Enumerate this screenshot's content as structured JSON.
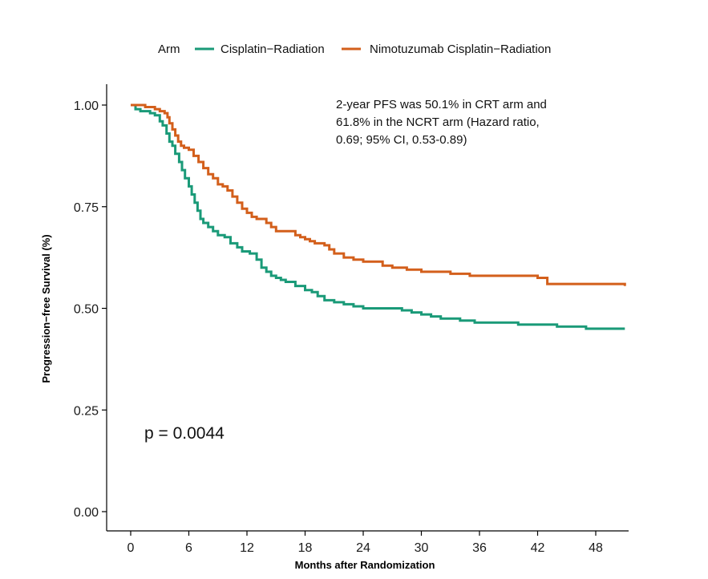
{
  "chart_data": {
    "type": "line",
    "step": true,
    "xlabel": "Months after Randomization",
    "ylabel": "Progression−free Survival (%)",
    "xlim": [
      -2,
      51
    ],
    "ylim": [
      0,
      1
    ],
    "xticks": [
      0,
      6,
      12,
      18,
      24,
      30,
      36,
      42,
      48
    ],
    "xtick_labels": [
      "0",
      "6",
      "12",
      "18",
      "24",
      "30",
      "36",
      "42",
      "48"
    ],
    "yticks": [
      0,
      0.25,
      0.5,
      0.75,
      1.0
    ],
    "ytick_labels": [
      "0.00",
      "0.25",
      "0.50",
      "0.75",
      "1.00"
    ],
    "grid": false,
    "legend": {
      "title": "Arm",
      "position": "top",
      "entries": [
        "Cisplatin−Radiation",
        "Nimotuzumab Cisplatin−Radiation"
      ]
    },
    "annotations": {
      "pfs_note": [
        "2-year PFS was 50.1% in CRT arm and",
        "61.8% in the NCRT arm (Hazard ratio,",
        "0.69; 95% CI, 0.53-0.89)"
      ],
      "p_value": "p = 0.0044"
    },
    "series": [
      {
        "name": "Cisplatin−Radiation",
        "color": "#1a9a78",
        "x": [
          0,
          0.5,
          1,
          2,
          2.5,
          3,
          3.3,
          3.7,
          4,
          4.3,
          4.6,
          5,
          5.3,
          5.6,
          6,
          6.3,
          6.6,
          6.9,
          7.2,
          7.5,
          8,
          8.5,
          9,
          9.7,
          10.3,
          11,
          11.5,
          12.3,
          13,
          13.5,
          14,
          14.5,
          15,
          15.5,
          16,
          17,
          18,
          18.7,
          19.3,
          20,
          21,
          22,
          23,
          24,
          26,
          28,
          29,
          30,
          31,
          32,
          34,
          35.5,
          40,
          42,
          44,
          47,
          51
        ],
        "y": [
          1.0,
          0.99,
          0.985,
          0.98,
          0.975,
          0.96,
          0.95,
          0.93,
          0.91,
          0.9,
          0.88,
          0.86,
          0.84,
          0.82,
          0.8,
          0.78,
          0.76,
          0.74,
          0.72,
          0.71,
          0.7,
          0.69,
          0.68,
          0.675,
          0.66,
          0.65,
          0.64,
          0.635,
          0.62,
          0.6,
          0.59,
          0.58,
          0.575,
          0.57,
          0.565,
          0.555,
          0.545,
          0.54,
          0.53,
          0.52,
          0.515,
          0.51,
          0.505,
          0.5,
          0.5,
          0.495,
          0.49,
          0.485,
          0.48,
          0.475,
          0.47,
          0.465,
          0.46,
          0.46,
          0.455,
          0.45,
          0.45
        ]
      },
      {
        "name": "Nimotuzumab Cisplatin−Radiation",
        "color": "#d35f1b",
        "x": [
          0,
          1.5,
          2.5,
          3,
          3.5,
          3.8,
          4,
          4.3,
          4.6,
          4.9,
          5.2,
          5.5,
          6,
          6.5,
          7,
          7.5,
          8,
          8.5,
          9,
          9.5,
          10,
          10.5,
          11,
          11.5,
          12,
          12.5,
          13,
          14,
          14.5,
          15,
          17,
          17.5,
          18,
          18.5,
          19,
          20,
          20.5,
          21,
          22,
          23,
          24,
          26,
          27,
          28.5,
          30,
          33,
          35,
          42,
          43,
          51
        ],
        "y": [
          1.0,
          0.995,
          0.99,
          0.985,
          0.98,
          0.97,
          0.955,
          0.94,
          0.925,
          0.91,
          0.9,
          0.895,
          0.89,
          0.875,
          0.86,
          0.845,
          0.83,
          0.82,
          0.805,
          0.8,
          0.79,
          0.775,
          0.76,
          0.745,
          0.735,
          0.725,
          0.72,
          0.71,
          0.7,
          0.69,
          0.68,
          0.675,
          0.67,
          0.665,
          0.66,
          0.655,
          0.645,
          0.635,
          0.625,
          0.62,
          0.615,
          0.605,
          0.6,
          0.595,
          0.59,
          0.585,
          0.58,
          0.575,
          0.56,
          0.555
        ]
      }
    ]
  }
}
